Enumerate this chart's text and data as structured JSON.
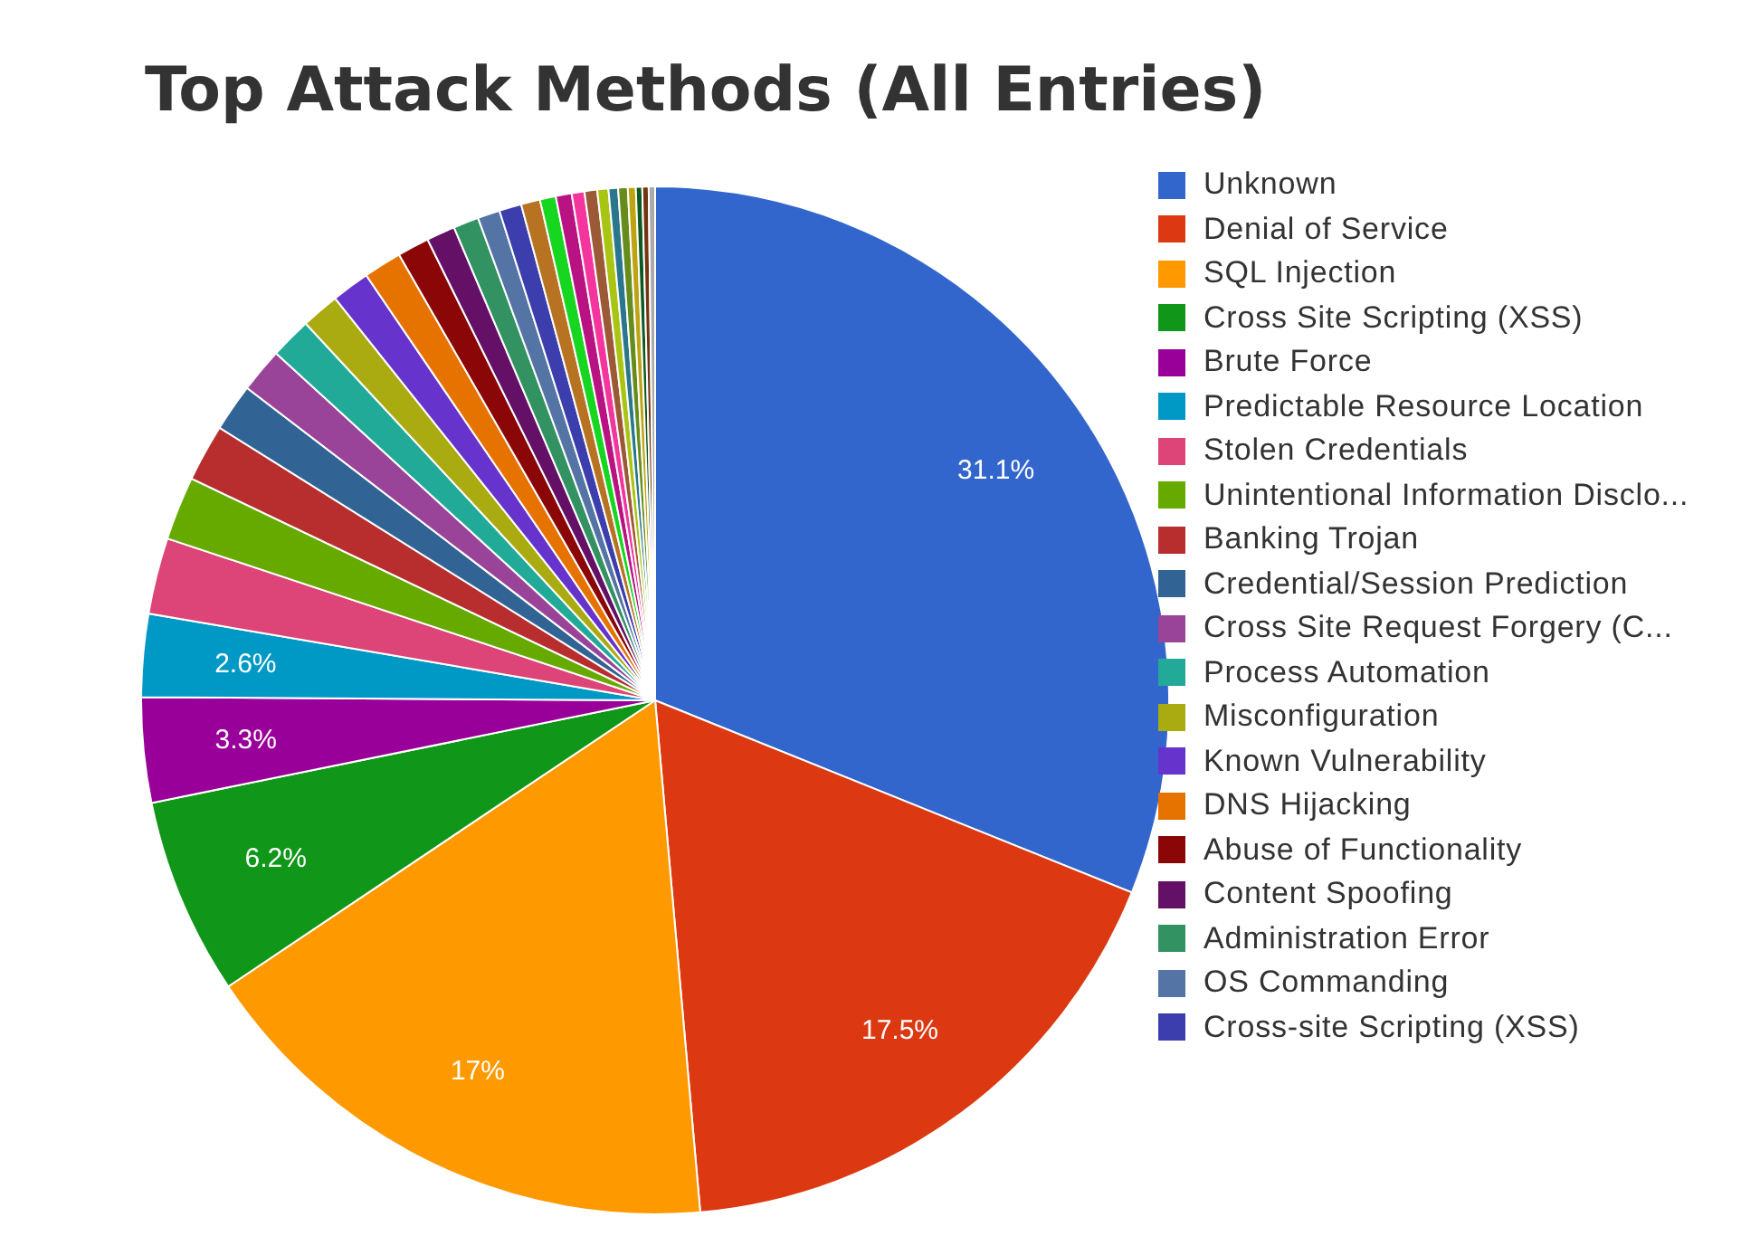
{
  "chart_data": {
    "type": "pie",
    "title": "Top Attack Methods (All Entries)",
    "categories": [
      "Unknown",
      "Denial of Service",
      "SQL Injection",
      "Cross Site Scripting (XSS)",
      "Brute Force",
      "Predictable Resource Location",
      "Stolen Credentials",
      "Unintentional Information Disclo...",
      "Banking Trojan",
      "Credential/Session Prediction",
      "Cross Site Request Forgery (C...",
      "Process Automation",
      "Misconfiguration",
      "Known Vulnerability",
      "DNS Hijacking",
      "Abuse of Functionality",
      "Content Spoofing",
      "Administration Error",
      "OS Commanding",
      "Cross-site Scripting (XSS)",
      null,
      null,
      null,
      null,
      null,
      null,
      null,
      null,
      null,
      null,
      null,
      null
    ],
    "values": [
      31.1,
      17.5,
      17,
      6.2,
      3.3,
      2.6,
      2.4,
      2.0,
      1.8,
      1.5,
      1.4,
      1.3,
      1.2,
      1.2,
      1.2,
      1.0,
      0.9,
      0.8,
      0.7,
      0.7,
      0.6,
      0.5,
      0.5,
      0.4,
      0.4,
      0.35,
      0.3,
      0.3,
      0.25,
      0.2,
      0.2,
      0.2
    ],
    "value_labels": [
      "31.1%",
      "17.5%",
      "17%",
      "6.2%",
      "3.3%",
      "2.6%",
      null,
      null,
      null,
      null,
      null,
      null,
      null,
      null,
      null,
      null,
      null,
      null,
      null,
      null,
      null,
      null,
      null,
      null,
      null,
      null,
      null,
      null,
      null,
      null,
      null,
      null
    ],
    "colors": [
      "#3366cc",
      "#dc3912",
      "#ff9900",
      "#109618",
      "#990099",
      "#0099c6",
      "#dd4477",
      "#66aa00",
      "#b82e2e",
      "#316395",
      "#994499",
      "#22aa99",
      "#aaaa11",
      "#6633cc",
      "#e67300",
      "#8b0707",
      "#651067",
      "#329262",
      "#5574a6",
      "#3b3eac",
      "#b77322",
      "#16d620",
      "#b91383",
      "#f4359e",
      "#9c5935",
      "#a9c413",
      "#2a778d",
      "#668d1c",
      "#bea413",
      "#0c5922",
      "#743411",
      "#aaaaaa"
    ],
    "legend": "right"
  }
}
